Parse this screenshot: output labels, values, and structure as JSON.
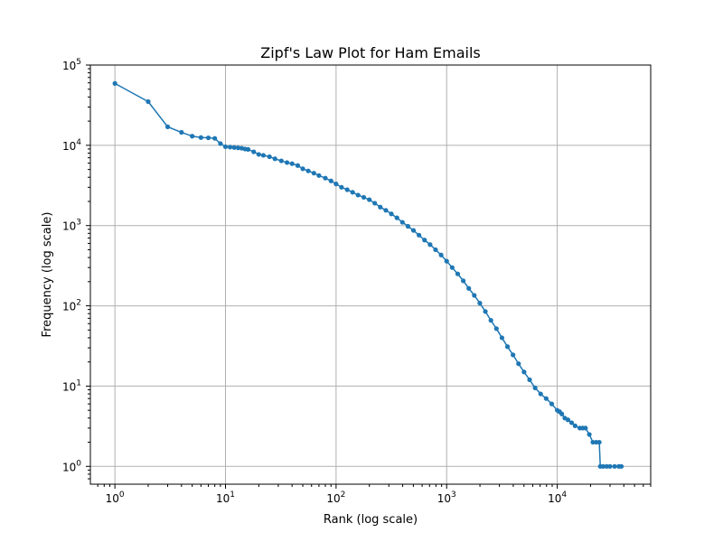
{
  "chart_data": {
    "type": "line",
    "title": "Zipf's Law Plot for Ham Emails",
    "xlabel": "Rank (log scale)",
    "ylabel": "Frequency (log scale)",
    "x_scale": "log",
    "y_scale": "log",
    "xlim": [
      0.6,
      70000
    ],
    "ylim": [
      0.6,
      100000
    ],
    "x_ticks": [
      {
        "base": "10",
        "exp": "0",
        "value": 1
      },
      {
        "base": "10",
        "exp": "1",
        "value": 10
      },
      {
        "base": "10",
        "exp": "2",
        "value": 100
      },
      {
        "base": "10",
        "exp": "3",
        "value": 1000
      },
      {
        "base": "10",
        "exp": "4",
        "value": 10000
      }
    ],
    "y_ticks": [
      {
        "base": "10",
        "exp": "0",
        "value": 1
      },
      {
        "base": "10",
        "exp": "1",
        "value": 10
      },
      {
        "base": "10",
        "exp": "2",
        "value": 100
      },
      {
        "base": "10",
        "exp": "3",
        "value": 1000
      },
      {
        "base": "10",
        "exp": "4",
        "value": 10000
      },
      {
        "base": "10",
        "exp": "5",
        "value": 100000
      }
    ],
    "grid": true,
    "line_color": "#1f77b4",
    "series": [
      {
        "x": [
          1,
          2,
          3,
          4,
          5,
          6,
          7,
          8,
          9,
          10,
          11,
          12,
          13,
          14,
          15,
          16,
          18,
          20,
          22,
          25,
          28,
          32,
          36,
          40,
          45,
          50,
          56,
          63,
          70,
          80,
          90,
          100,
          112,
          126,
          141,
          158,
          178,
          200,
          224,
          251,
          282,
          316,
          355,
          398,
          447,
          501,
          562,
          631,
          708,
          794,
          891,
          1000,
          1122,
          1259,
          1413,
          1585,
          1778,
          1995,
          2239,
          2512,
          2818,
          3162,
          3548,
          3981,
          4467,
          5012,
          5623,
          6310,
          7079,
          7943,
          8913,
          10000,
          10500,
          11000,
          11700,
          12500,
          13500,
          14500,
          16000,
          17000,
          18000,
          19500,
          21000,
          22500,
          24000,
          24500,
          26000,
          28000,
          30000,
          33000,
          36000,
          38000
        ],
        "y": [
          59000,
          35000,
          17000,
          14500,
          13000,
          12500,
          12400,
          12200,
          10500,
          9600,
          9500,
          9400,
          9300,
          9200,
          9000,
          8900,
          8300,
          7700,
          7500,
          7200,
          6800,
          6400,
          6100,
          5900,
          5600,
          5100,
          4800,
          4500,
          4200,
          3900,
          3600,
          3300,
          3000,
          2800,
          2600,
          2400,
          2250,
          2100,
          1900,
          1700,
          1550,
          1400,
          1250,
          1100,
          980,
          870,
          760,
          660,
          580,
          500,
          430,
          360,
          300,
          250,
          205,
          165,
          135,
          108,
          85,
          66,
          52,
          40,
          31,
          24.5,
          19,
          15,
          12,
          9.5,
          8,
          7,
          6,
          5,
          4.8,
          4.5,
          4,
          3.8,
          3.5,
          3.2,
          3,
          3,
          3,
          2.5,
          2,
          2,
          2,
          1,
          1,
          1,
          1,
          1,
          1,
          1
        ]
      }
    ]
  }
}
